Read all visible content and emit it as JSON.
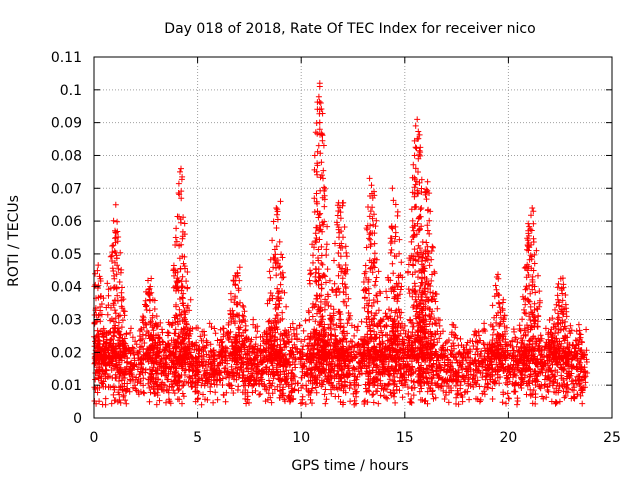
{
  "chart_data": {
    "type": "scatter",
    "title": "Day 018 of 2018, Rate Of TEC Index for receiver nico",
    "xlabel": "GPS time / hours",
    "ylabel": "ROTI / TECUs",
    "xlim": [
      0,
      25
    ],
    "ylim": [
      0,
      0.11
    ],
    "grid": true,
    "marker": "+",
    "series_color": "#ff0000",
    "x_ticks": [
      {
        "value": 0,
        "label": "0"
      },
      {
        "value": 5,
        "label": "5"
      },
      {
        "value": 10,
        "label": "10"
      },
      {
        "value": 15,
        "label": "15"
      },
      {
        "value": 20,
        "label": "20"
      },
      {
        "value": 25,
        "label": "25"
      }
    ],
    "y_ticks": [
      {
        "value": 0,
        "label": "0"
      },
      {
        "value": 0.01,
        "label": "0.01"
      },
      {
        "value": 0.02,
        "label": "0.02"
      },
      {
        "value": 0.03,
        "label": "0.03"
      },
      {
        "value": 0.04,
        "label": "0.04"
      },
      {
        "value": 0.05,
        "label": "0.05"
      },
      {
        "value": 0.06,
        "label": "0.06"
      },
      {
        "value": 0.07,
        "label": "0.07"
      },
      {
        "value": 0.08,
        "label": "0.08"
      },
      {
        "value": 0.09,
        "label": "0.09"
      },
      {
        "value": 0.1,
        "label": "0.1"
      },
      {
        "value": 0.11,
        "label": "0.11"
      }
    ],
    "x_range_data": [
      0,
      23.8
    ],
    "baseline": {
      "median": 0.016,
      "spread_low": 0.004,
      "spread_high": 0.03
    },
    "enhancements": [
      {
        "x": 0.2,
        "peak": 0.047
      },
      {
        "x": 1.0,
        "peak": 0.065
      },
      {
        "x": 2.7,
        "peak": 0.043
      },
      {
        "x": 4.2,
        "peak": 0.076
      },
      {
        "x": 6.9,
        "peak": 0.049
      },
      {
        "x": 8.8,
        "peak": 0.066
      },
      {
        "x": 10.9,
        "peak": 0.102
      },
      {
        "x": 11.9,
        "peak": 0.07
      },
      {
        "x": 13.4,
        "peak": 0.073
      },
      {
        "x": 14.5,
        "peak": 0.07
      },
      {
        "x": 15.6,
        "peak": 0.091
      },
      {
        "x": 16.1,
        "peak": 0.072
      },
      {
        "x": 19.5,
        "peak": 0.044
      },
      {
        "x": 21.1,
        "peak": 0.064
      },
      {
        "x": 22.5,
        "peak": 0.045
      }
    ],
    "outliers": [
      {
        "x": 10.9,
        "y": 0.102
      },
      {
        "x": 10.9,
        "y": 0.101
      },
      {
        "x": 10.9,
        "y": 0.094
      },
      {
        "x": 10.9,
        "y": 0.09
      },
      {
        "x": 10.9,
        "y": 0.088
      },
      {
        "x": 10.85,
        "y": 0.083
      },
      {
        "x": 15.6,
        "y": 0.091
      },
      {
        "x": 15.6,
        "y": 0.085
      },
      {
        "x": 15.65,
        "y": 0.079
      },
      {
        "x": 4.2,
        "y": 0.076
      },
      {
        "x": 4.15,
        "y": 0.075
      },
      {
        "x": 13.3,
        "y": 0.073
      },
      {
        "x": 14.4,
        "y": 0.07
      },
      {
        "x": 16.1,
        "y": 0.072
      },
      {
        "x": 21.15,
        "y": 0.064
      },
      {
        "x": 21.2,
        "y": 0.063
      },
      {
        "x": 1.05,
        "y": 0.065
      },
      {
        "x": 9.0,
        "y": 0.066
      },
      {
        "x": 8.8,
        "y": 0.064
      },
      {
        "x": 11.0,
        "y": 0.074
      },
      {
        "x": 11.05,
        "y": 0.073
      }
    ]
  }
}
